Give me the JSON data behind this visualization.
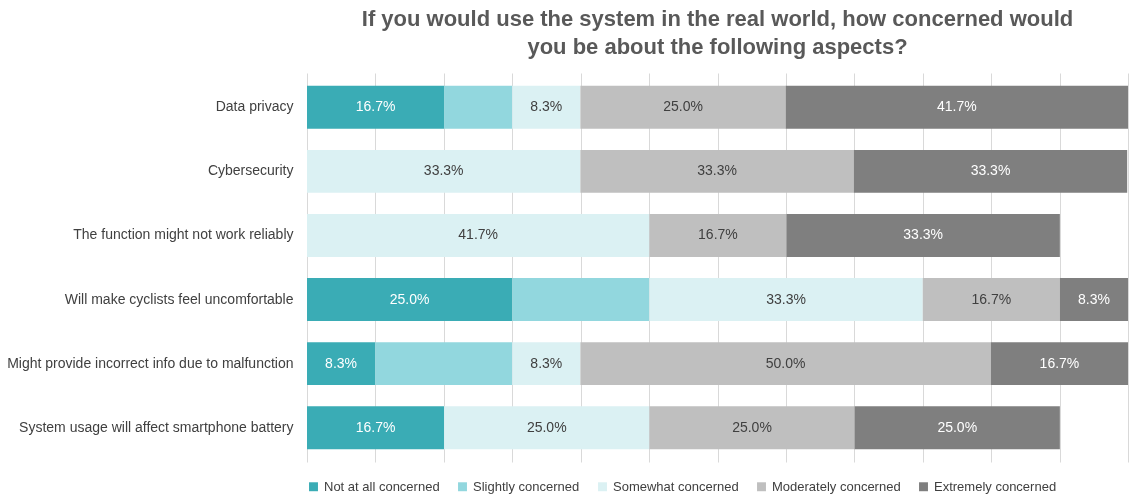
{
  "chart_data": {
    "type": "bar",
    "orientation": "horizontal",
    "stacked": true,
    "title": "If you would use the system in the real world, how concerned would you be about the following aspects?",
    "categories": [
      "Data privacy",
      "Cybersecurity ",
      "The function might not work reliably",
      "Will make cyclists feel uncomfortable",
      "Might provide incorrect info due to malfunction",
      "System usage will affect smartphone battery"
    ],
    "series": [
      {
        "name": "Not at all concerned",
        "color": "#3aacb5",
        "values": [
          16.7,
          0,
          0,
          25.0,
          8.3,
          16.7
        ],
        "value_labels": [
          "16.7%",
          null,
          null,
          "25.0%",
          "8.3%",
          "16.7%"
        ]
      },
      {
        "name": "Slightly concerned",
        "color": "#92d7de",
        "values": [
          8.3,
          0,
          0,
          16.7,
          16.7,
          0
        ],
        "value_labels": [
          null,
          null,
          null,
          null,
          null,
          null
        ]
      },
      {
        "name": "Somewhat concerned",
        "color": "#dbf1f3",
        "values": [
          8.3,
          33.3,
          41.7,
          33.3,
          8.3,
          25.0
        ],
        "value_labels": [
          "8.3%",
          "33.3%",
          "41.7%",
          "33.3%",
          "8.3%",
          "25.0%"
        ]
      },
      {
        "name": "Moderately concerned",
        "color": "#bfbfbf",
        "values": [
          25.0,
          33.3,
          16.7,
          16.7,
          50.0,
          25.0
        ],
        "value_labels": [
          "25.0%",
          "33.3%",
          "16.7%",
          "16.7%",
          "50.0%",
          "25.0%"
        ]
      },
      {
        "name": "Extremely concerned",
        "color": "#7f7f7f",
        "values": [
          41.7,
          33.3,
          33.3,
          8.3,
          16.7,
          25.0
        ],
        "value_labels": [
          "41.7%",
          "33.3%",
          "33.3%",
          "8.3%",
          "16.7%",
          "25.0%"
        ]
      }
    ],
    "xlim": [
      0,
      100
    ],
    "xticks": [
      {
        "value": 0,
        "label": null
      },
      {
        "value": 8.33,
        "label": null
      },
      {
        "value": 16.67,
        "label": null
      },
      {
        "value": 25,
        "label": null
      },
      {
        "value": 33.33,
        "label": null
      },
      {
        "value": 41.67,
        "label": null
      },
      {
        "value": 50,
        "label": null
      },
      {
        "value": 58.33,
        "label": null
      },
      {
        "value": 66.67,
        "label": null
      },
      {
        "value": 75,
        "label": null
      },
      {
        "value": 83.33,
        "label": null
      },
      {
        "value": 91.67,
        "label": null
      },
      {
        "value": 100,
        "label": null
      }
    ],
    "grid": "x",
    "tick_labels": "y",
    "legend": "bottom"
  }
}
